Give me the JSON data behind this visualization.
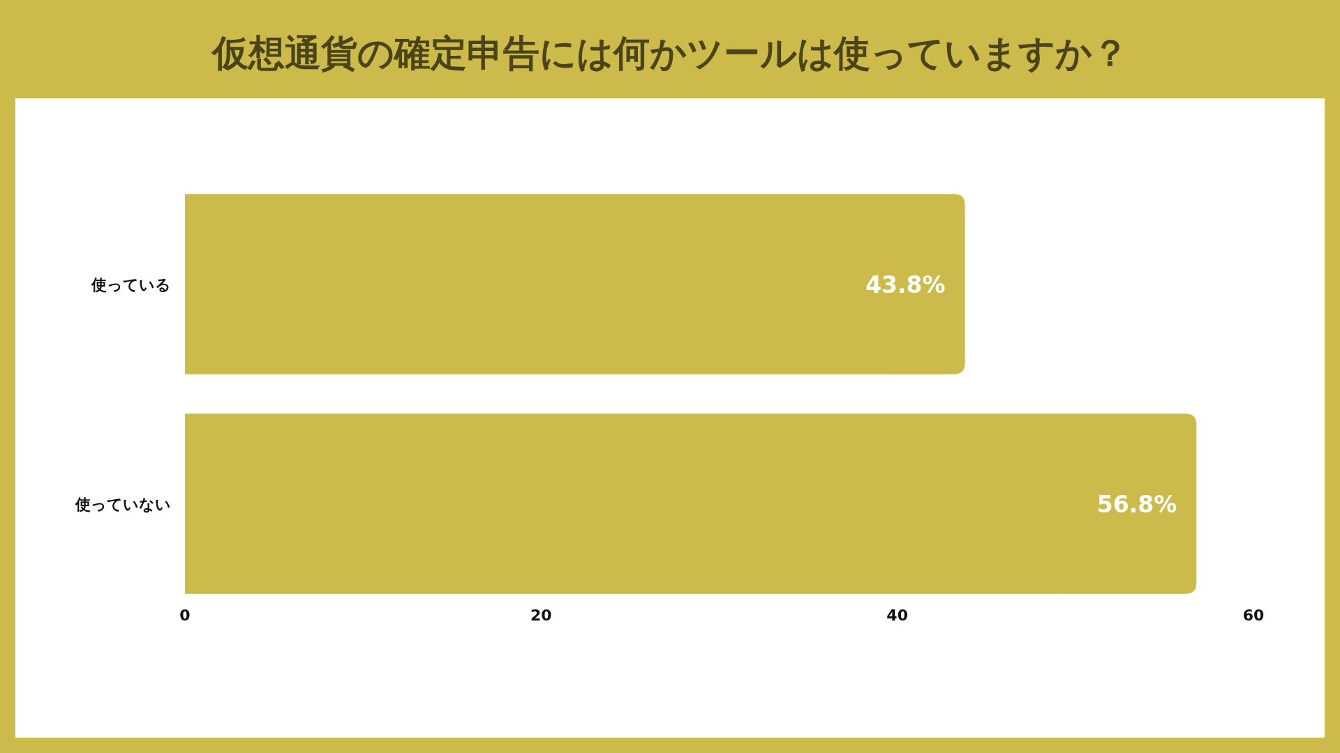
{
  "chart_data": {
    "type": "bar",
    "orientation": "horizontal",
    "title": "仮想通貨の確定申告には何かツールは使っていますか？",
    "categories": [
      "使っている",
      "使っていない"
    ],
    "values": [
      43.8,
      56.8
    ],
    "value_labels": [
      "43.8%",
      "56.8%"
    ],
    "color": "#ccbb4b",
    "xlim": [
      0,
      60
    ],
    "xticks": [
      0,
      20,
      40,
      60
    ]
  }
}
